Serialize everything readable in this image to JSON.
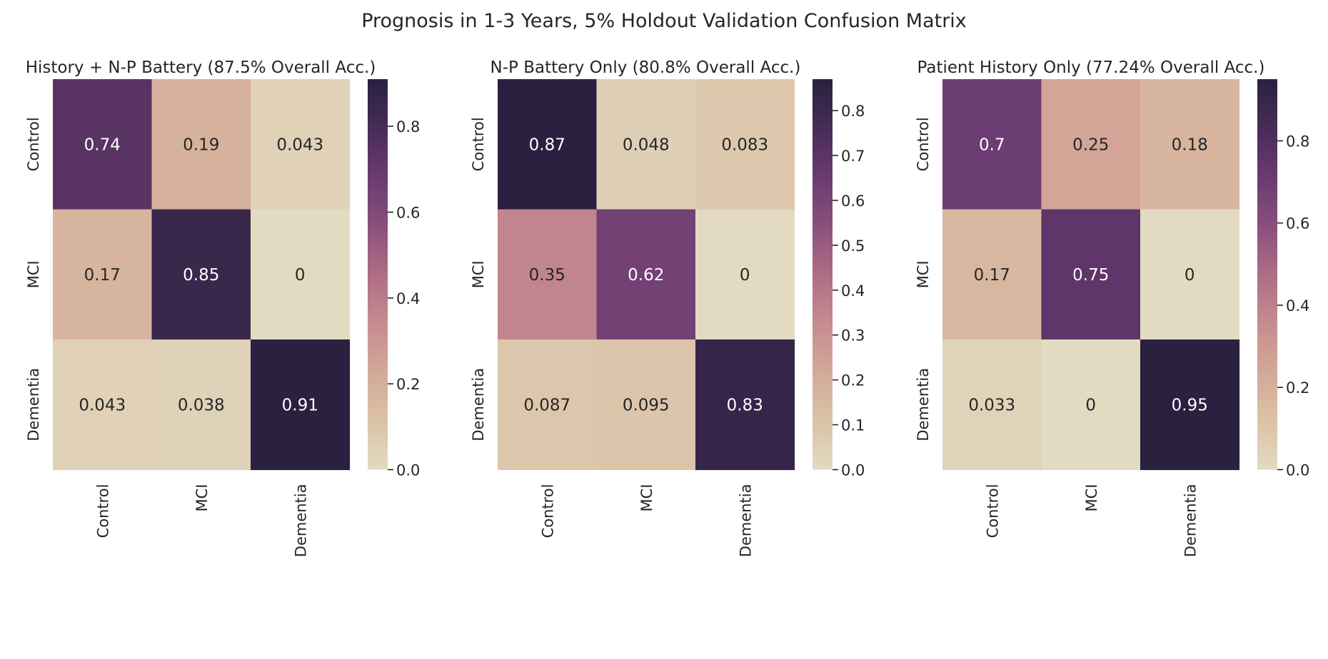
{
  "figure": {
    "suptitle": "Prognosis in 1-3 Years, 5% Holdout Validation Confusion Matrix"
  },
  "colormap": [
    "#e3dac2",
    "#dbc2a6",
    "#d3a898",
    "#c58c8f",
    "#ae6d86",
    "#8a4f7c",
    "#693b71",
    "#482c57",
    "#2a2140"
  ],
  "chart_data": [
    {
      "type": "heatmap",
      "title": "History + N-P Battery (87.5% Overall Acc.)",
      "row_labels": [
        "Control",
        "MCI",
        "Dementia"
      ],
      "col_labels": [
        "Control",
        "MCI",
        "Dementia"
      ],
      "values": [
        [
          0.74,
          0.19,
          0.043
        ],
        [
          0.17,
          0.85,
          0
        ],
        [
          0.043,
          0.038,
          0.91
        ]
      ],
      "cell_labels": [
        [
          "0.74",
          "0.19",
          "0.043"
        ],
        [
          "0.17",
          "0.85",
          "0"
        ],
        [
          "0.043",
          "0.038",
          "0.91"
        ]
      ],
      "vmin": 0,
      "vmax": 0.91,
      "colorbar_ticks": [
        "0.0",
        "0.2",
        "0.4",
        "0.6",
        "0.8"
      ]
    },
    {
      "type": "heatmap",
      "title": "N-P Battery Only (80.8% Overall Acc.)",
      "row_labels": [
        "Control",
        "MCI",
        "Dementia"
      ],
      "col_labels": [
        "Control",
        "MCI",
        "Dementia"
      ],
      "values": [
        [
          0.87,
          0.048,
          0.083
        ],
        [
          0.35,
          0.62,
          0
        ],
        [
          0.087,
          0.095,
          0.83
        ]
      ],
      "cell_labels": [
        [
          "0.87",
          "0.048",
          "0.083"
        ],
        [
          "0.35",
          "0.62",
          "0"
        ],
        [
          "0.087",
          "0.095",
          "0.83"
        ]
      ],
      "vmin": 0,
      "vmax": 0.87,
      "colorbar_ticks": [
        "0.0",
        "0.1",
        "0.2",
        "0.3",
        "0.4",
        "0.5",
        "0.6",
        "0.7",
        "0.8"
      ]
    },
    {
      "type": "heatmap",
      "title": "Patient History Only (77.24% Overall Acc.)",
      "row_labels": [
        "Control",
        "MCI",
        "Dementia"
      ],
      "col_labels": [
        "Control",
        "MCI",
        "Dementia"
      ],
      "values": [
        [
          0.7,
          0.25,
          0.18
        ],
        [
          0.17,
          0.75,
          0
        ],
        [
          0.033,
          0,
          0.95
        ]
      ],
      "cell_labels": [
        [
          "0.7",
          "0.25",
          "0.18"
        ],
        [
          "0.17",
          "0.75",
          "0"
        ],
        [
          "0.033",
          "0",
          "0.95"
        ]
      ],
      "vmin": 0,
      "vmax": 0.95,
      "colorbar_ticks": [
        "0.0",
        "0.2",
        "0.4",
        "0.6",
        "0.8"
      ]
    }
  ]
}
